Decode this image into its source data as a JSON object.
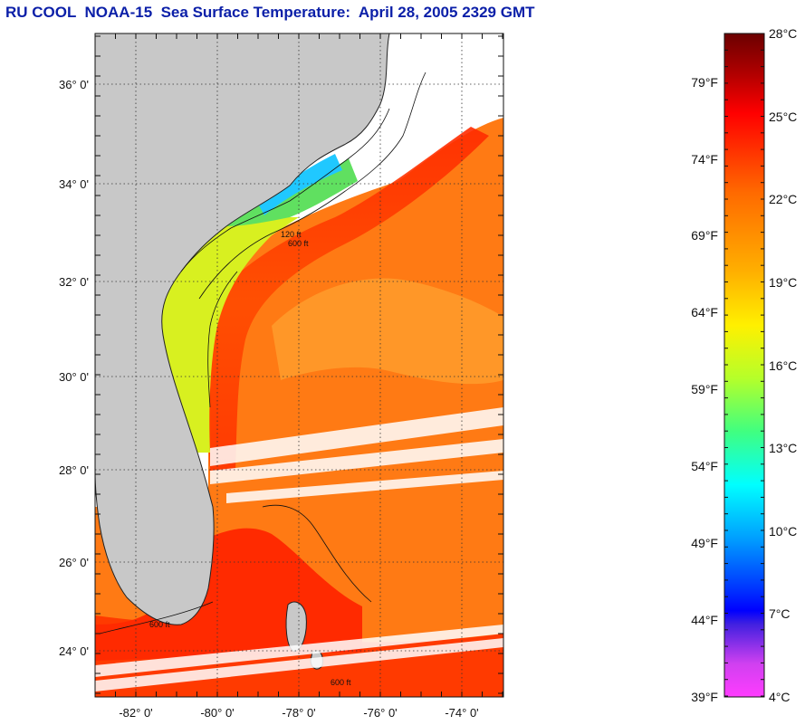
{
  "title": "RU COOL  NOAA-15  Sea Surface Temperature:  April 28, 2005 2329 GMT",
  "map": {
    "lat_labels": [
      "36° 0'",
      "34° 0'",
      "32° 0'",
      "30° 0'",
      "28° 0'",
      "26° 0'",
      "24° 0'"
    ],
    "lon_labels": [
      "-82° 0'",
      "-80° 0'",
      "-78° 0'",
      "-76° 0'",
      "-74° 0'"
    ],
    "land_color": "#c8c8c8",
    "contour_labels": [
      "120 ft",
      "600 ft"
    ]
  },
  "colorbar": {
    "celsius": [
      "28°C",
      "25°C",
      "22°C",
      "19°C",
      "16°C",
      "13°C",
      "10°C",
      "7°C",
      "4°C"
    ],
    "fahrenheit": [
      "79°F",
      "74°F",
      "69°F",
      "64°F",
      "59°F",
      "54°F",
      "49°F",
      "44°F",
      "39°F"
    ],
    "colors": [
      "#6b0000",
      "#e00000",
      "#ff3b00",
      "#ff8a00",
      "#ffd200",
      "#e6ff00",
      "#8cff3a",
      "#00ff9a",
      "#00ffff",
      "#00a8ff",
      "#0050ff",
      "#0000ff",
      "#7a2bd6",
      "#ff39ff"
    ]
  }
}
